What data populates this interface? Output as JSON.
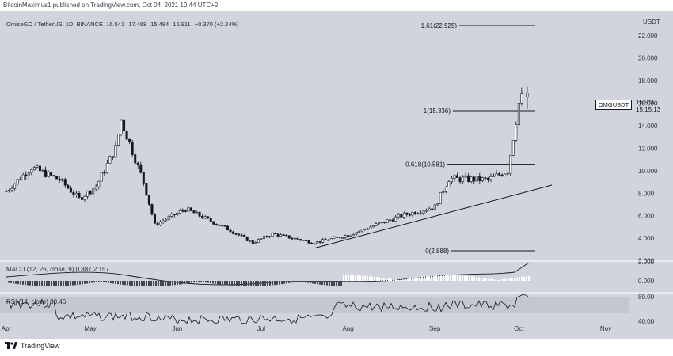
{
  "header": {
    "publisher_text": "BitcoinMaximus1 published on TradingView.com, Oct 04, 2021 10:44 UTC+2"
  },
  "symbol": {
    "title": "OmiseGO / TetherUS, 1D, BINANCE",
    "open": "16.541",
    "high": "17.468",
    "low": "15.484",
    "close": "16.911",
    "change": "+0.370 (+2.24%)"
  },
  "price_axis": {
    "currency": "USDT",
    "labels": [
      "22.000",
      "20.000",
      "18.000",
      "16.000",
      "14.000",
      "12.000",
      "10.000",
      "8.000",
      "6.000",
      "4.000",
      "2.000"
    ]
  },
  "last_price": {
    "ticker": "OMGUSDT",
    "price": "16.911",
    "countdown": "15:15:13"
  },
  "macd": {
    "label": "MACD (12, 26, close, 9)",
    "value1": "0.887",
    "value2": "2.157",
    "ticks": [
      "2.000",
      "0.000"
    ]
  },
  "rsi": {
    "label": "RSI (14, close)",
    "value": "80.46",
    "ticks": [
      "80.00",
      "40.00"
    ]
  },
  "time_axis": [
    "Apr",
    "May",
    "Jun",
    "Jul",
    "Aug",
    "Sep",
    "Oct",
    "Nov"
  ],
  "fib_levels": [
    "1.61(22.929)",
    "1(15.336)",
    "0.618(10.581)",
    "0(2.888)"
  ],
  "footer": {
    "brand": "TradingView"
  },
  "colors": {
    "background": "#d1d4dc",
    "line": "#131722",
    "candle_up": "#ffffff",
    "candle_down": "#131722"
  },
  "chart_data": {
    "type": "candlestick",
    "title": "OmiseGO / TetherUS, 1D, BINANCE",
    "x_range": [
      "2021-04-01",
      "2021-11-01"
    ],
    "ylim": [
      2.0,
      23.5
    ],
    "key_points": [
      {
        "date": "2021-04-01",
        "price": 8.2
      },
      {
        "date": "2021-04-10",
        "price": 10.3
      },
      {
        "date": "2021-04-20",
        "price": 9.2
      },
      {
        "date": "2021-04-27",
        "price": 7.5
      },
      {
        "date": "2021-05-03",
        "price": 8.6
      },
      {
        "date": "2021-05-10",
        "price": 12.0
      },
      {
        "date": "2021-05-12",
        "price": 14.5
      },
      {
        "date": "2021-05-20",
        "price": 9.0
      },
      {
        "date": "2021-05-24",
        "price": 5.2
      },
      {
        "date": "2021-06-04",
        "price": 6.6
      },
      {
        "date": "2021-06-20",
        "price": 4.7
      },
      {
        "date": "2021-06-28",
        "price": 3.6
      },
      {
        "date": "2021-07-05",
        "price": 4.4
      },
      {
        "date": "2021-07-20",
        "price": 3.6
      },
      {
        "date": "2021-08-01",
        "price": 4.3
      },
      {
        "date": "2021-08-20",
        "price": 6.0
      },
      {
        "date": "2021-09-01",
        "price": 6.8
      },
      {
        "date": "2021-09-06",
        "price": 9.3
      },
      {
        "date": "2021-09-20",
        "price": 9.2
      },
      {
        "date": "2021-09-27",
        "price": 10.0
      },
      {
        "date": "2021-10-01",
        "price": 16.0
      },
      {
        "date": "2021-10-03",
        "price": 16.9
      }
    ],
    "last": {
      "open": 16.541,
      "high": 17.468,
      "low": 15.484,
      "close": 16.911
    }
  }
}
